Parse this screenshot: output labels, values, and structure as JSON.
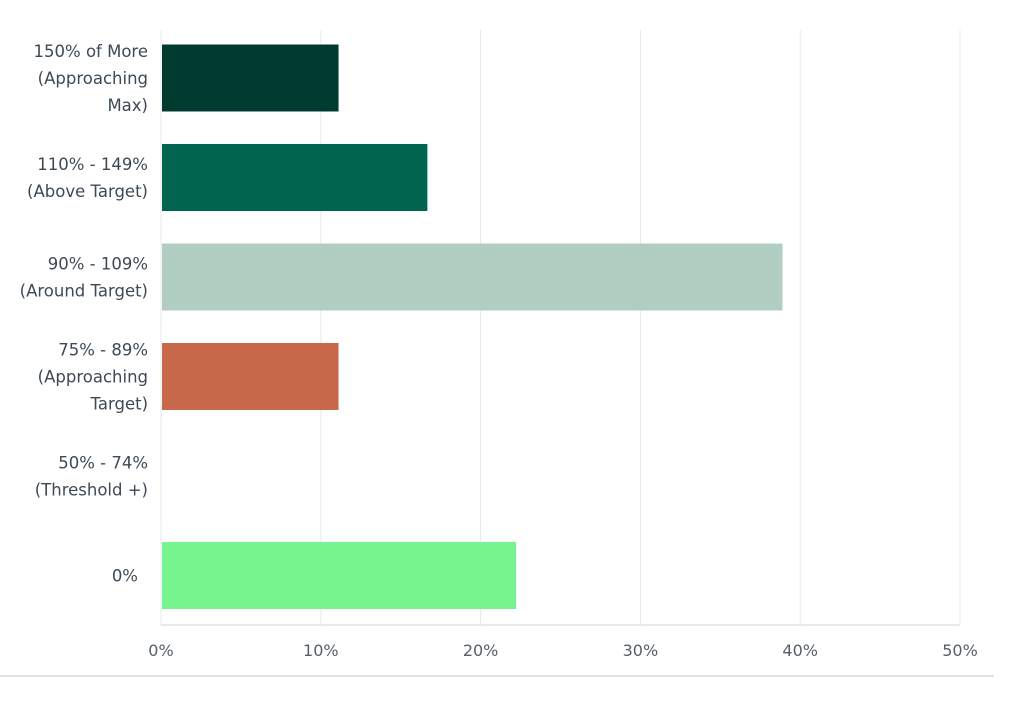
{
  "chart_data": {
    "type": "bar",
    "orientation": "horizontal",
    "categories": [
      [
        "150% of More",
        "(Approaching",
        "Max)"
      ],
      [
        "110% - 149%",
        "(Above Target)"
      ],
      [
        "90% - 109%",
        "(Around Target)"
      ],
      [
        "75% - 89%",
        "(Approaching",
        "Target)"
      ],
      [
        "50% - 74%",
        "(Threshold +)"
      ],
      [
        "0%"
      ]
    ],
    "values": [
      11.11,
      16.67,
      38.89,
      11.11,
      0,
      22.22
    ],
    "colors": [
      "#003b2f",
      "#00644f",
      "#b0cfc2",
      "#c9694c",
      "#cccccc",
      "#78f48f"
    ],
    "xlim": [
      0,
      50
    ],
    "xticks": [
      0,
      10,
      20,
      30,
      40,
      50
    ],
    "xtick_labels": [
      "0%",
      "10%",
      "20%",
      "30%",
      "40%",
      "50%"
    ],
    "grid": true,
    "legend": "none"
  }
}
